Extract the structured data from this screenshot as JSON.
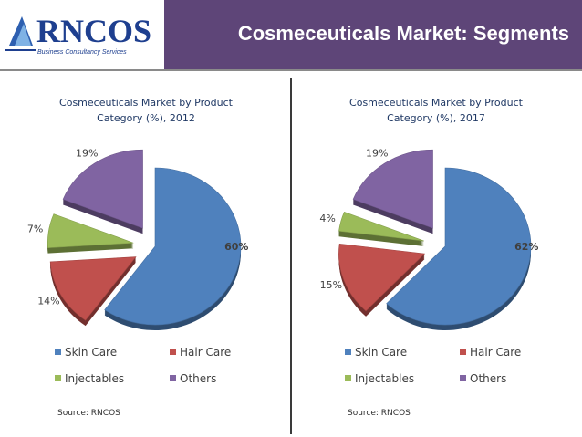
{
  "header": {
    "logo_text": "RNCOS",
    "logo_tagline": "Business Consultancy Services",
    "title": "Cosmeceuticals Market: Segments"
  },
  "colors": {
    "title_bar": "#5e4578",
    "skin_care": "#4f81bd",
    "hair_care": "#c0504d",
    "injectables": "#9bbb59",
    "others": "#8064a2"
  },
  "chart_data": [
    {
      "type": "pie",
      "title": "Cosmeceuticals Market by Product Category (%), 2012",
      "title_lines": [
        "Cosmeceuticals Market by Product",
        "Category (%), 2012"
      ],
      "categories": [
        "Skin Care",
        "Hair Care",
        "Injectables",
        "Others"
      ],
      "values": [
        60,
        14,
        7,
        19
      ],
      "labels": [
        "60%",
        "14%",
        "7%",
        "19%"
      ],
      "exploded": [
        false,
        true,
        true,
        true
      ],
      "legend": "bottom",
      "source": "Source: RNCOS"
    },
    {
      "type": "pie",
      "title": "Cosmeceuticals Market by Product Category (%), 2017",
      "title_lines": [
        "Cosmeceuticals Market by Product",
        "Category (%), 2017"
      ],
      "categories": [
        "Skin Care",
        "Hair Care",
        "Injectables",
        "Others"
      ],
      "values": [
        62,
        15,
        4,
        19
      ],
      "labels": [
        "62%",
        "15%",
        "4%",
        "19%"
      ],
      "exploded": [
        false,
        true,
        true,
        true
      ],
      "legend": "bottom",
      "source": "Source: RNCOS"
    }
  ]
}
